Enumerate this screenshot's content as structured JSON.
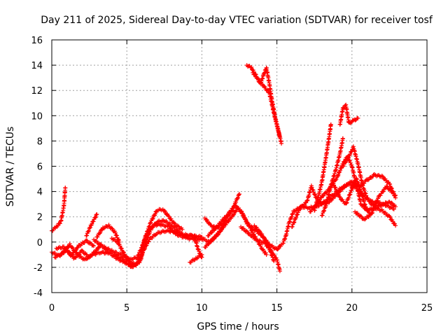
{
  "chart_data": {
    "type": "scatter",
    "title": "Day 211 of 2025, Sidereal Day-to-day VTEC variation (SDTVAR) for receiver tosf",
    "xlabel": "GPS time / hours",
    "ylabel": "SDTVAR / TECUs",
    "xlim": [
      0,
      25
    ],
    "ylim": [
      -4,
      16
    ],
    "xticks": [
      0,
      5,
      10,
      15,
      20,
      25
    ],
    "yticks": [
      -4,
      -2,
      0,
      2,
      4,
      6,
      8,
      10,
      12,
      14,
      16
    ],
    "grid": true,
    "marker": "+",
    "series_color": "#ff0000",
    "tracks": [
      {
        "name": "track-1",
        "points": [
          [
            0,
            0.9
          ],
          [
            0.3,
            1.2
          ],
          [
            0.6,
            1.6
          ],
          [
            0.8,
            2.8
          ],
          [
            0.9,
            4.3
          ]
        ]
      },
      {
        "name": "track-2",
        "points": [
          [
            0,
            -0.8
          ],
          [
            0.5,
            -1.1
          ],
          [
            1,
            -0.6
          ],
          [
            1.5,
            -1.3
          ],
          [
            2,
            -0.7
          ],
          [
            2.5,
            -1.2
          ],
          [
            3,
            -0.6
          ],
          [
            3.3,
            -0.2
          ]
        ]
      },
      {
        "name": "track-3",
        "points": [
          [
            0.2,
            -1.2
          ],
          [
            0.7,
            -0.9
          ],
          [
            1.2,
            -0.2
          ],
          [
            1.7,
            -1
          ],
          [
            2.2,
            -1.4
          ],
          [
            2.7,
            -1
          ],
          [
            3.3,
            -0.8
          ],
          [
            3.8,
            -0.9
          ]
        ]
      },
      {
        "name": "track-4",
        "points": [
          [
            0.3,
            -0.5
          ],
          [
            0.8,
            -0.4
          ],
          [
            1.3,
            -1.1
          ],
          [
            1.8,
            -0.3
          ],
          [
            2.3,
            0.1
          ],
          [
            2.8,
            -0.3
          ]
        ]
      },
      {
        "name": "track-5",
        "points": [
          [
            2.3,
            0.5
          ],
          [
            2.6,
            1.3
          ],
          [
            3,
            2.2
          ]
        ]
      },
      {
        "name": "track-6",
        "points": [
          [
            3,
            0.4
          ],
          [
            3.4,
            1.1
          ],
          [
            3.8,
            1.3
          ],
          [
            4.2,
            0.8
          ],
          [
            4.5,
            0
          ]
        ]
      },
      {
        "name": "track-7",
        "points": [
          [
            2.8,
            0.2
          ],
          [
            3.3,
            -0.3
          ],
          [
            4,
            -0.7
          ],
          [
            4.6,
            -1
          ],
          [
            5.2,
            -1.4
          ],
          [
            5.7,
            -1.2
          ],
          [
            6,
            -0.4
          ],
          [
            6.3,
            0.6
          ],
          [
            6.7,
            1.3
          ],
          [
            7.2,
            1.4
          ],
          [
            7.8,
            1.2
          ],
          [
            8.3,
            0.6
          ],
          [
            9,
            0.3
          ],
          [
            10,
            0.2
          ]
        ]
      },
      {
        "name": "track-8",
        "points": [
          [
            3.5,
            -0.5
          ],
          [
            4.2,
            -1.2
          ],
          [
            4.8,
            -1.6
          ],
          [
            5.5,
            -1.9
          ],
          [
            5.9,
            -1.5
          ],
          [
            6.2,
            -0.2
          ],
          [
            6.6,
            1
          ],
          [
            7,
            1.6
          ],
          [
            7.5,
            1.7
          ],
          [
            8,
            1.3
          ],
          [
            8.7,
            0.6
          ],
          [
            9.3,
            0.5
          ],
          [
            10,
            0.4
          ]
        ]
      },
      {
        "name": "track-9",
        "points": [
          [
            4,
            0.3
          ],
          [
            4.4,
            0
          ],
          [
            4.8,
            -0.9
          ],
          [
            5.2,
            -1.6
          ],
          [
            5.6,
            -1.8
          ],
          [
            5.9,
            -1.2
          ],
          [
            6.2,
            0.3
          ],
          [
            6.6,
            1.6
          ],
          [
            7,
            2.5
          ],
          [
            7.4,
            2.6
          ],
          [
            7.8,
            2
          ],
          [
            8.2,
            1.4
          ],
          [
            8.7,
            1
          ]
        ]
      },
      {
        "name": "track-10",
        "points": [
          [
            4.2,
            -1
          ],
          [
            4.8,
            -1.4
          ],
          [
            5.3,
            -2
          ],
          [
            5.8,
            -1.6
          ],
          [
            6.1,
            -0.7
          ],
          [
            6.5,
            0.2
          ],
          [
            7,
            0.7
          ],
          [
            7.6,
            0.9
          ],
          [
            8.2,
            0.8
          ],
          [
            8.8,
            0.5
          ],
          [
            9.4,
            0.5
          ]
        ]
      },
      {
        "name": "track-11",
        "points": [
          [
            9.5,
            0.5
          ],
          [
            9.7,
            -0.4
          ],
          [
            9.9,
            -1
          ],
          [
            10,
            -1.2
          ]
        ]
      },
      {
        "name": "track-12",
        "points": [
          [
            9.2,
            -1.6
          ],
          [
            9.6,
            -1.3
          ],
          [
            10,
            -1
          ]
        ]
      },
      {
        "name": "track-13",
        "points": [
          [
            10,
            0.3
          ],
          [
            10.5,
            0
          ],
          [
            11,
            0.5
          ],
          [
            11.5,
            1.3
          ],
          [
            12,
            2
          ],
          [
            12.4,
            2.7
          ],
          [
            12.7,
            2.3
          ],
          [
            13,
            1.5
          ],
          [
            13.5,
            1
          ],
          [
            14,
            0.5
          ],
          [
            14.5,
            -0.2
          ],
          [
            15,
            -0.6
          ],
          [
            15.3,
            -0.2
          ]
        ]
      },
      {
        "name": "track-14",
        "points": [
          [
            10.2,
            -0.4
          ],
          [
            10.8,
            0.3
          ],
          [
            11.3,
            1
          ],
          [
            11.8,
            2.3
          ],
          [
            12.2,
            2.9
          ],
          [
            12.6,
            2.4
          ],
          [
            13,
            1.6
          ],
          [
            13.5,
            0.5
          ],
          [
            14,
            -0.5
          ],
          [
            14.3,
            -1
          ]
        ]
      },
      {
        "name": "track-15",
        "points": [
          [
            10.4,
            0.5
          ],
          [
            11,
            1.2
          ],
          [
            11.5,
            1.9
          ],
          [
            12,
            2.4
          ],
          [
            12.3,
            3.3
          ],
          [
            12.5,
            3.8
          ]
        ]
      },
      {
        "name": "track-16",
        "points": [
          [
            10.2,
            1.9
          ],
          [
            10.6,
            1.3
          ],
          [
            11,
            1.1
          ],
          [
            11.5,
            1.6
          ]
        ]
      },
      {
        "name": "track-17",
        "points": [
          [
            12.6,
            1.2
          ],
          [
            13.2,
            0.6
          ],
          [
            13.6,
            0.2
          ],
          [
            14.2,
            -0.1
          ],
          [
            14.6,
            -0.7
          ],
          [
            15,
            -1.4
          ],
          [
            15.2,
            -2.3
          ]
        ]
      },
      {
        "name": "track-18",
        "points": [
          [
            13.5,
            1.3
          ],
          [
            14,
            0.6
          ],
          [
            14.5,
            -0.5
          ],
          [
            14.8,
            -1.5
          ]
        ]
      },
      {
        "name": "track-19",
        "points": [
          [
            13,
            14
          ],
          [
            13.3,
            13.8
          ],
          [
            13.6,
            13.2
          ],
          [
            13.9,
            12.5
          ],
          [
            14.1,
            13.2
          ],
          [
            14.3,
            13.8
          ],
          [
            14.5,
            12.5
          ],
          [
            14.7,
            11
          ],
          [
            14.9,
            9.8
          ],
          [
            15.1,
            8.8
          ],
          [
            15.3,
            7.8
          ]
        ]
      },
      {
        "name": "track-20",
        "points": [
          [
            13.4,
            13.4
          ],
          [
            13.8,
            12.8
          ],
          [
            14.2,
            12.2
          ],
          [
            14.5,
            11.8
          ],
          [
            14.8,
            10.2
          ],
          [
            15.2,
            8.3
          ]
        ]
      },
      {
        "name": "track-21",
        "points": [
          [
            15.4,
            -0.1
          ],
          [
            15.6,
            0.5
          ],
          [
            15.8,
            1.5
          ],
          [
            16.1,
            2.4
          ],
          [
            16.6,
            2.8
          ],
          [
            17.2,
            2.7
          ],
          [
            17.8,
            2.9
          ],
          [
            18.3,
            3.3
          ],
          [
            18.8,
            3.8
          ],
          [
            19.3,
            4.3
          ],
          [
            19.8,
            4.6
          ],
          [
            20.3,
            4.3
          ],
          [
            20.8,
            3.6
          ],
          [
            21.3,
            3.2
          ],
          [
            21.8,
            3.1
          ],
          [
            22.3,
            2.9
          ],
          [
            22.8,
            2.6
          ]
        ]
      },
      {
        "name": "track-22",
        "points": [
          [
            16,
            1.2
          ],
          [
            16.5,
            2.6
          ],
          [
            17,
            3.2
          ],
          [
            17.3,
            4.4
          ],
          [
            17.6,
            3.5
          ],
          [
            18,
            3
          ],
          [
            18.5,
            3.2
          ],
          [
            19,
            3.8
          ],
          [
            19.5,
            4.4
          ],
          [
            20,
            4.8
          ],
          [
            20.5,
            4.4
          ],
          [
            21,
            4.9
          ],
          [
            21.5,
            5.3
          ],
          [
            22,
            5.2
          ],
          [
            22.5,
            4.6
          ],
          [
            22.9,
            3.5
          ]
        ]
      },
      {
        "name": "track-23",
        "points": [
          [
            17.2,
            2.4
          ],
          [
            17.6,
            2.9
          ],
          [
            18,
            3.6
          ],
          [
            18.5,
            4.2
          ],
          [
            19,
            5.1
          ],
          [
            19.4,
            6.2
          ],
          [
            19.7,
            6.8
          ],
          [
            20,
            6
          ],
          [
            20.3,
            4.5
          ],
          [
            20.6,
            3
          ],
          [
            21,
            2.5
          ],
          [
            21.5,
            2.7
          ],
          [
            22,
            2.5
          ],
          [
            22.5,
            2
          ],
          [
            22.9,
            1.3
          ]
        ]
      },
      {
        "name": "track-24",
        "points": [
          [
            17.5,
            2.5
          ],
          [
            17.8,
            3.8
          ],
          [
            18,
            4.8
          ],
          [
            18.2,
            6.2
          ],
          [
            18.4,
            7.7
          ],
          [
            18.6,
            9.3
          ]
        ]
      },
      {
        "name": "track-25",
        "points": [
          [
            18,
            2.1
          ],
          [
            18.3,
            3
          ],
          [
            18.6,
            4.5
          ],
          [
            18.9,
            5.6
          ],
          [
            19.2,
            7
          ],
          [
            19.4,
            8.2
          ]
        ]
      },
      {
        "name": "track-26",
        "points": [
          [
            19.2,
            9.3
          ],
          [
            19.4,
            10.6
          ],
          [
            19.6,
            10.8
          ],
          [
            19.8,
            9.4
          ],
          [
            20.1,
            9.6
          ],
          [
            20.4,
            9.8
          ]
        ]
      },
      {
        "name": "track-27",
        "points": [
          [
            19.4,
            6
          ],
          [
            19.8,
            6.8
          ],
          [
            20.1,
            7.5
          ],
          [
            20.4,
            6.2
          ],
          [
            20.7,
            4.5
          ],
          [
            21,
            3.5
          ],
          [
            21.3,
            3
          ],
          [
            21.7,
            2.8
          ],
          [
            22.1,
            3
          ],
          [
            22.5,
            3.2
          ],
          [
            22.9,
            2.8
          ]
        ]
      },
      {
        "name": "track-28",
        "points": [
          [
            18.8,
            4.5
          ],
          [
            19.2,
            3.5
          ],
          [
            19.6,
            3
          ],
          [
            20,
            4.2
          ],
          [
            20.3,
            5
          ],
          [
            20.6,
            4
          ],
          [
            20.9,
            2.8
          ],
          [
            21.2,
            2.2
          ]
        ]
      },
      {
        "name": "track-29",
        "points": [
          [
            20.2,
            2.4
          ],
          [
            20.8,
            1.8
          ],
          [
            21.3,
            2.2
          ],
          [
            21.8,
            3.6
          ],
          [
            22.3,
            4.4
          ],
          [
            22.9,
            3.7
          ]
        ]
      }
    ]
  }
}
